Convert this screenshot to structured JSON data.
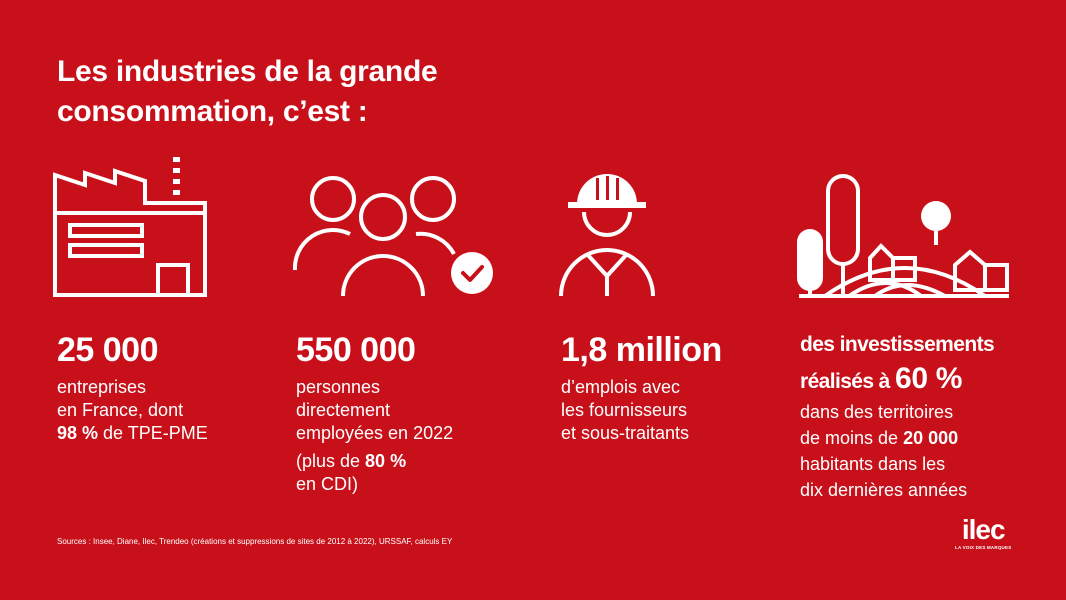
{
  "title": {
    "line1": "Les industries de la grande",
    "line2": "consommation, c’est :"
  },
  "colors": {
    "background": "#c8101a",
    "foreground": "#ffffff"
  },
  "icons": [
    "factory-icon",
    "people-icon",
    "worker-icon",
    "landscape-icon"
  ],
  "stats": {
    "s1": {
      "number": "25 000",
      "l1": "entreprises",
      "l2": "en France, dont",
      "l3_bold": "98 %",
      "l3_rest": " de TPE-PME"
    },
    "s2": {
      "number": "550 000",
      "l1": "personnes",
      "l2": "directement",
      "l3": "employées en 2022",
      "l4_pre": "(plus de ",
      "l4_bold": "80 %",
      "l5": "en CDI)"
    },
    "s3": {
      "number": "1,8 million",
      "l1": "d’emplois avec",
      "l2": "les fournisseurs",
      "l3": "et sous-traitants"
    },
    "s4": {
      "h1": "des investissements",
      "h2_pre": "réalisés à ",
      "h2_num": "60 %",
      "l1": "dans des territoires",
      "l2_pre": "de moins de ",
      "l2_bold": "20 000",
      "l3": "habitants dans les",
      "l4": "dix dernières années"
    }
  },
  "sources": "Sources : Insee, Diane, Ilec, Trendeo (créations et suppressions de sites de 2012 à 2022), URSSAF, calculs EY",
  "logo": {
    "word": "ilec",
    "tagline": "LA VOIX DES MARQUES"
  }
}
